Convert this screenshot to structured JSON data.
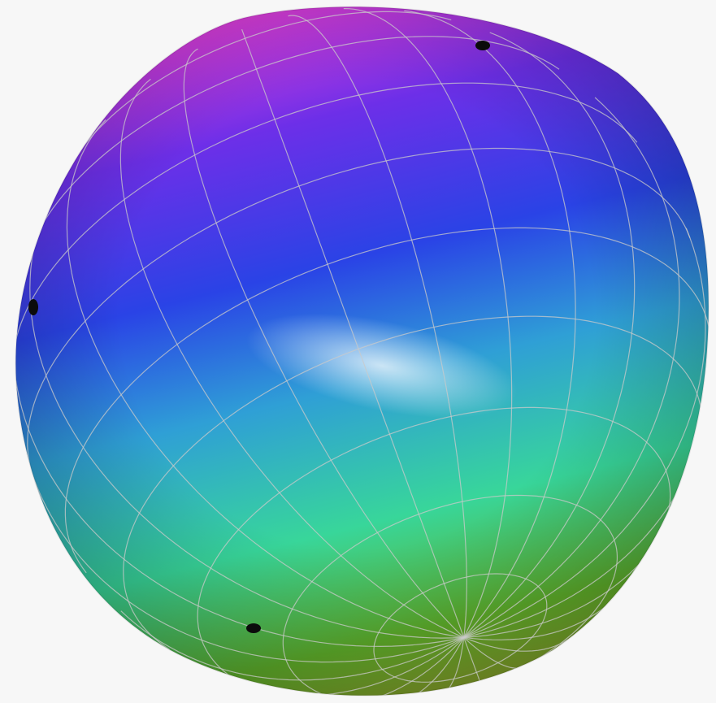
{
  "scene": {
    "subject": "colored-sphere-with-grid",
    "background_color": "#f7f7f7",
    "colors": {
      "top": "#e83fd8",
      "upper": "#6d2fe8",
      "band": "#2a43e6",
      "middle": "#2f9fd6",
      "lower": "#38d69a",
      "bottom": "#5fb02a",
      "base": "#8aa02a",
      "grid": "#c9c9c9",
      "pole": "#0b0b0b"
    },
    "poles": [
      "pole-top",
      "pole-left",
      "pole-bottom"
    ]
  }
}
